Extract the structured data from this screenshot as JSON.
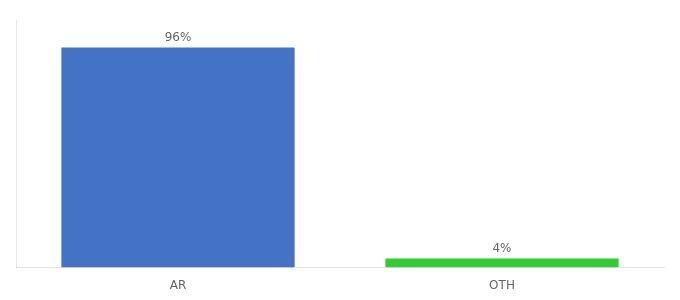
{
  "chart_data": {
    "type": "bar",
    "categories": [
      "AR",
      "OTH"
    ],
    "values": [
      96,
      4
    ],
    "value_labels": [
      "96%",
      "4%"
    ],
    "data_labels": true,
    "colors": [
      "#4472c4",
      "#33cc33"
    ],
    "ylim": [
      0,
      108
    ],
    "grid": false,
    "tick_labels": "x"
  }
}
